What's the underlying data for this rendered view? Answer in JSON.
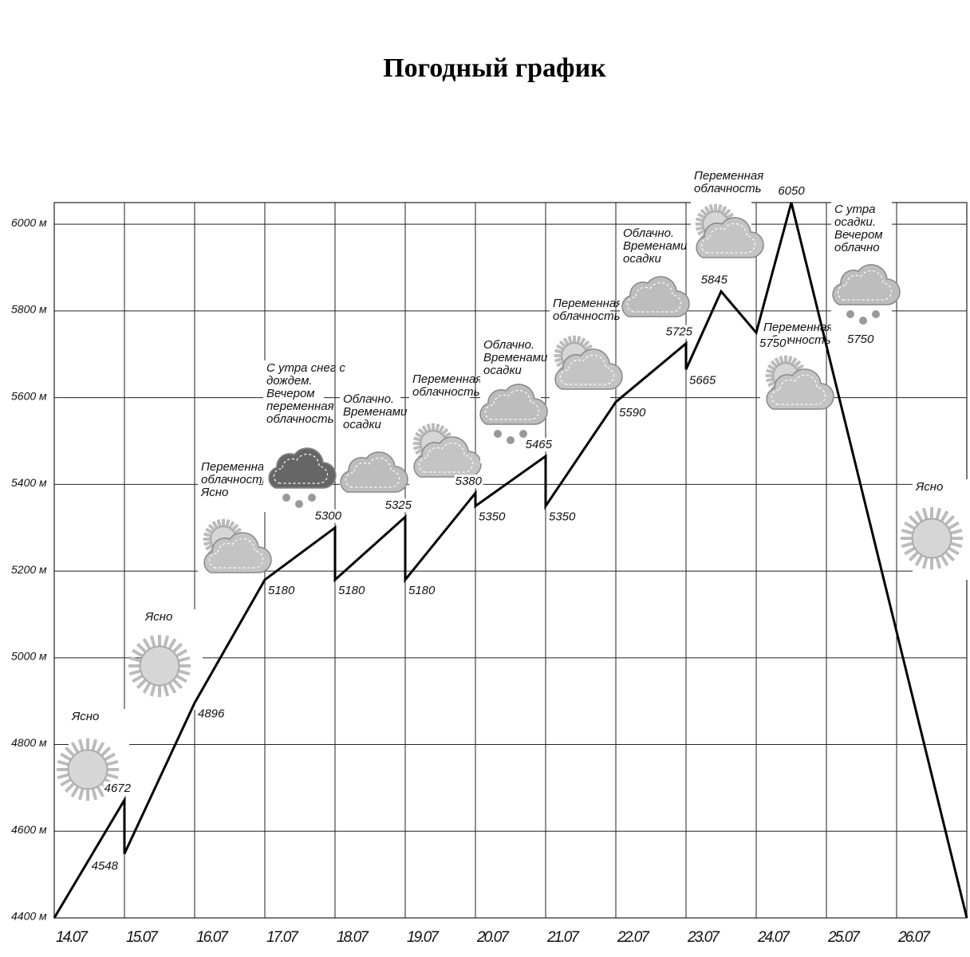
{
  "chart_data": {
    "type": "line",
    "title": "Погодный график",
    "xlim": [
      0,
      13
    ],
    "xticks": [
      {
        "value": 0,
        "label": "14.07"
      },
      {
        "value": 1,
        "label": "15.07"
      },
      {
        "value": 2,
        "label": "16.07"
      },
      {
        "value": 3,
        "label": "17.07"
      },
      {
        "value": 4,
        "label": "18.07"
      },
      {
        "value": 5,
        "label": "19.07"
      },
      {
        "value": 6,
        "label": "20.07"
      },
      {
        "value": 7,
        "label": "21.07"
      },
      {
        "value": 8,
        "label": "22.07"
      },
      {
        "value": 9,
        "label": "23.07"
      },
      {
        "value": 10,
        "label": "24.07"
      },
      {
        "value": 11,
        "label": "25.07"
      },
      {
        "value": 12,
        "label": "26.07"
      },
      {
        "value": 13,
        "label": ""
      }
    ],
    "ylim": [
      4400,
      6050
    ],
    "yticks": [
      {
        "value": 4400,
        "label": "4400 м"
      },
      {
        "value": 4600,
        "label": "4600 м"
      },
      {
        "value": 4800,
        "label": "4800 м"
      },
      {
        "value": 5000,
        "label": "5000 м"
      },
      {
        "value": 5200,
        "label": "5200 м"
      },
      {
        "value": 5400,
        "label": "5400 м"
      },
      {
        "value": 5600,
        "label": "5600 м"
      },
      {
        "value": 5800,
        "label": "5800 м"
      },
      {
        "value": 6000,
        "label": "6000 м"
      }
    ],
    "grid": true,
    "x": [
      0,
      1,
      1,
      2,
      3,
      4,
      4,
      5,
      5,
      6,
      6,
      7,
      7,
      8,
      9,
      9,
      9.5,
      10,
      10.5,
      13
    ],
    "series": [
      {
        "color": "#000000",
        "values": [
          4400,
          4672,
          4548,
          4896,
          5180,
          5300,
          5180,
          5325,
          5180,
          5380,
          5350,
          5465,
          5350,
          5590,
          5725,
          5665,
          5845,
          5750,
          6050,
          4400
        ]
      }
    ],
    "annotations": [
      {
        "lines": [
          "Ясно"
        ],
        "icon": "sun"
      },
      {
        "lines": [
          "Ясно"
        ],
        "icon": "sun"
      },
      {
        "lines": [
          "Переменная",
          "облачность",
          "Ясно"
        ],
        "icon": "partly"
      },
      {
        "lines": [
          "С утра снег с",
          "дождем.",
          "Вечером",
          "переменная",
          "облачность"
        ],
        "icon": "storm"
      },
      {
        "lines": [
          "Облачно.",
          "Временами",
          "осадки"
        ],
        "icon": "cloud"
      },
      {
        "lines": [
          "Переменная",
          "облачность"
        ],
        "icon": "partly"
      },
      {
        "lines": [
          "Облачно.",
          "Временами",
          "осадки"
        ],
        "icon": "snow"
      },
      {
        "lines": [
          "Переменная",
          "облачность"
        ],
        "icon": "partly"
      },
      {
        "lines": [
          "Облачно.",
          "Временами",
          "осадки"
        ],
        "icon": "cloud"
      },
      {
        "lines": [
          "Переменная",
          "облачность"
        ],
        "icon": "partly"
      },
      {
        "lines": [
          "Переменная",
          "облачность"
        ],
        "icon": "partly"
      },
      {
        "lines": [
          "С утра",
          "осадки.",
          "Вечером",
          "облачно"
        ],
        "icon": "snow",
        "note": "5750"
      },
      {
        "lines": [
          "Ясно"
        ],
        "icon": "sun"
      }
    ]
  }
}
